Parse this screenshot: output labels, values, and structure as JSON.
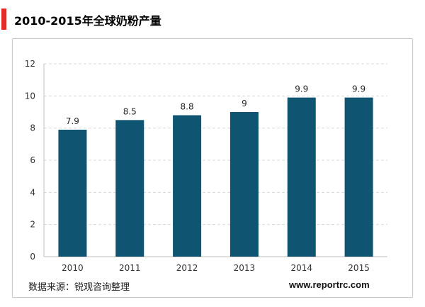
{
  "title": "2010-2015年全球奶粉产量",
  "source_label": "数据来源：锐观咨询整理",
  "website": "www.reportrc.com",
  "colors": {
    "accent": "#e02b27",
    "bar": "#0f5470",
    "grid": "#d9d9d9"
  },
  "chart_data": {
    "type": "bar",
    "title": "",
    "xlabel": "",
    "ylabel": "",
    "categories": [
      "2010",
      "2011",
      "2012",
      "2013",
      "2014",
      "2015"
    ],
    "values": [
      7.9,
      8.5,
      8.8,
      9,
      9.9,
      9.9
    ],
    "data_labels": [
      "7.9",
      "8.5",
      "8.8",
      "9",
      "9.9",
      "9.9"
    ],
    "ylim": [
      0,
      12
    ],
    "yticks": [
      0,
      2,
      4,
      6,
      8,
      10,
      12
    ],
    "grid": true,
    "legend": "none"
  }
}
